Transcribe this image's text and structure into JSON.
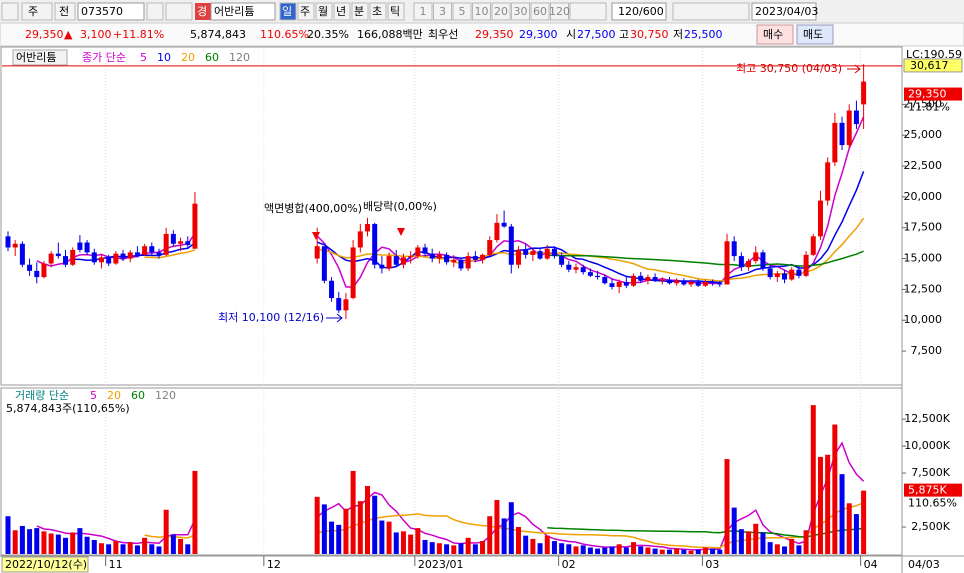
{
  "toolbar": {
    "market": "주",
    "prev": "전",
    "code": "073570",
    "warning": "경",
    "name": "어반리튬",
    "periods": [
      "일",
      "주",
      "월",
      "년",
      "분",
      "초",
      "틱"
    ],
    "intervals": [
      "1",
      "3",
      "5",
      "10",
      "20",
      "30",
      "60",
      "120"
    ],
    "count": "120/600",
    "date": "2023/04/03"
  },
  "quote": {
    "price": "29,350",
    "arrow": "▲",
    "change": "3,100",
    "change_pct": "+11.81%",
    "volume": "5,874,843",
    "volume_pct": "110.65%",
    "turnover": "20.35%",
    "amount": "166,088백만",
    "best_label": "최우선",
    "ask": "29,350",
    "bid": "29,300",
    "open_label": "시",
    "open": "27,500",
    "high_label": "고",
    "high": "30,750",
    "low_label": "저",
    "low": "25,500",
    "buy": "매수",
    "sell": "매도"
  },
  "chart_data": {
    "type": "candlestick",
    "name": "어반리튬",
    "ohlc": [
      [
        16800,
        17200,
        15600,
        15900
      ],
      [
        15900,
        16500,
        15200,
        16200
      ],
      [
        16200,
        16400,
        14300,
        14500
      ],
      [
        14500,
        15000,
        13600,
        14000
      ],
      [
        14000,
        14700,
        13000,
        13500
      ],
      [
        13500,
        14800,
        13400,
        14600
      ],
      [
        14600,
        15600,
        14300,
        15400
      ],
      [
        15400,
        16300,
        15000,
        15200
      ],
      [
        15200,
        15700,
        14300,
        14500
      ],
      [
        14500,
        15900,
        14400,
        15700
      ],
      [
        16300,
        16900,
        15500,
        15700
      ],
      [
        16300,
        16500,
        15300,
        15500
      ],
      [
        15500,
        15800,
        14500,
        14700
      ],
      [
        14700,
        15300,
        14200,
        15100
      ],
      [
        15100,
        15300,
        14400,
        14600
      ],
      [
        14600,
        15600,
        14500,
        15400
      ],
      [
        15400,
        15700,
        14800,
        15000
      ],
      [
        15000,
        15700,
        14700,
        15500
      ],
      [
        15500,
        16000,
        15100,
        15300
      ],
      [
        15300,
        16200,
        15200,
        16000
      ],
      [
        16000,
        16300,
        15300,
        15500
      ],
      [
        15500,
        15800,
        15000,
        15300
      ],
      [
        15300,
        17500,
        15200,
        17000
      ],
      [
        17000,
        17300,
        16000,
        16200
      ],
      [
        16200,
        16700,
        15600,
        16400
      ],
      [
        16400,
        16800,
        15900,
        16100
      ],
      [
        15800,
        20400,
        15800,
        19450
      ],
      null,
      null,
      null,
      null,
      null,
      null,
      null,
      null,
      null,
      null,
      null,
      null,
      null,
      null,
      null,
      null,
      [
        15000,
        17500,
        14600,
        16000
      ],
      [
        16000,
        16000,
        13000,
        13200
      ],
      [
        13200,
        13500,
        11500,
        11800
      ],
      [
        11800,
        12300,
        10600,
        10800
      ],
      [
        10800,
        12200,
        10100,
        11700
      ],
      [
        11800,
        16500,
        11700,
        15900
      ],
      [
        15900,
        17800,
        15500,
        17200
      ],
      [
        17200,
        18300,
        16800,
        17800
      ],
      [
        17800,
        17900,
        14200,
        14500
      ],
      [
        14500,
        15200,
        13800,
        14200
      ],
      [
        14200,
        15500,
        14000,
        15200
      ],
      [
        15200,
        15700,
        14300,
        14500
      ],
      [
        14500,
        15400,
        14200,
        15100
      ],
      [
        15100,
        15600,
        14600,
        15200
      ],
      [
        15200,
        16100,
        15000,
        15900
      ],
      [
        15900,
        16200,
        15200,
        15400
      ],
      [
        15400,
        15800,
        14700,
        15000
      ],
      [
        15000,
        15600,
        14600,
        15300
      ],
      [
        15300,
        15500,
        14500,
        14700
      ],
      [
        14700,
        15300,
        14300,
        14900
      ],
      [
        14900,
        15100,
        14000,
        14200
      ],
      [
        14200,
        15500,
        14000,
        15200
      ],
      [
        15200,
        15600,
        14700,
        14900
      ],
      [
        14900,
        15400,
        14600,
        15300
      ],
      [
        15300,
        16800,
        15200,
        16500
      ],
      [
        16500,
        18600,
        16300,
        17900
      ],
      [
        17900,
        18900,
        17500,
        17600
      ],
      [
        17600,
        17800,
        13800,
        14500
      ],
      [
        14500,
        16000,
        14200,
        15700
      ],
      [
        15700,
        16200,
        15000,
        15300
      ],
      [
        15300,
        15800,
        14800,
        15600
      ],
      [
        15600,
        15900,
        14900,
        15000
      ],
      [
        15000,
        16100,
        14900,
        15800
      ],
      [
        15800,
        16000,
        15000,
        15200
      ],
      [
        15200,
        15500,
        14300,
        14500
      ],
      [
        14500,
        14800,
        13900,
        14100
      ],
      [
        14100,
        14600,
        13800,
        14300
      ],
      [
        14300,
        14500,
        13700,
        13900
      ],
      [
        13900,
        14200,
        13500,
        13600
      ],
      [
        13600,
        14000,
        13300,
        13500
      ],
      [
        13500,
        13700,
        12900,
        13000
      ],
      [
        13000,
        13400,
        12500,
        12700
      ],
      [
        12700,
        13300,
        12200,
        13100
      ],
      [
        13100,
        13500,
        12600,
        12800
      ],
      [
        12800,
        13800,
        12700,
        13600
      ],
      [
        13600,
        13900,
        13000,
        13200
      ],
      [
        13200,
        13700,
        12900,
        13500
      ],
      [
        13500,
        13800,
        13100,
        13200
      ],
      [
        13200,
        13500,
        12900,
        13300
      ],
      [
        13300,
        13500,
        12900,
        13000
      ],
      [
        13000,
        13400,
        12800,
        13200
      ],
      [
        13200,
        13400,
        12800,
        12900
      ],
      [
        12900,
        13300,
        12700,
        13100
      ],
      [
        13100,
        13300,
        12700,
        12800
      ],
      [
        12800,
        13300,
        12700,
        13100
      ],
      [
        13100,
        13300,
        12800,
        13000
      ],
      [
        13000,
        13200,
        12700,
        12900
      ],
      [
        12900,
        17000,
        12900,
        16400
      ],
      [
        16400,
        16800,
        14800,
        15200
      ],
      [
        15200,
        15500,
        14000,
        14300
      ],
      [
        14300,
        15000,
        14000,
        14800
      ],
      [
        14800,
        16000,
        14600,
        15500
      ],
      [
        15500,
        15700,
        14000,
        14200
      ],
      [
        14200,
        14500,
        13300,
        13500
      ],
      [
        13500,
        14000,
        13100,
        13800
      ],
      [
        13800,
        14100,
        13000,
        13300
      ],
      [
        13300,
        14300,
        13200,
        14100
      ],
      [
        14100,
        14400,
        13400,
        13600
      ],
      [
        13600,
        15600,
        13500,
        15300
      ],
      [
        15300,
        17000,
        15200,
        16800
      ],
      [
        16800,
        20500,
        16500,
        19700
      ],
      [
        19700,
        23200,
        19300,
        22800
      ],
      [
        22800,
        26800,
        22500,
        26000
      ],
      [
        26000,
        26500,
        23800,
        24200
      ],
      [
        24200,
        27500,
        24000,
        27000
      ],
      [
        27000,
        27800,
        25500,
        25900
      ],
      [
        27500,
        30750,
        25500,
        29350
      ]
    ],
    "volume": [
      3500,
      2200,
      2600,
      2300,
      2400,
      2100,
      1900,
      1800,
      1500,
      2000,
      2400,
      1600,
      1300,
      1000,
      900,
      1200,
      900,
      1100,
      800,
      1500,
      900,
      700,
      4100,
      1800,
      1400,
      900,
      7700,
      null,
      null,
      null,
      null,
      null,
      null,
      null,
      null,
      null,
      null,
      null,
      null,
      null,
      null,
      null,
      null,
      5300,
      4600,
      3000,
      2700,
      4200,
      7700,
      4900,
      6300,
      5400,
      3100,
      3000,
      2000,
      2100,
      1800,
      2400,
      1300,
      1100,
      1000,
      900,
      800,
      1000,
      1500,
      900,
      1200,
      3500,
      5000,
      3300,
      4800,
      2500,
      1700,
      1400,
      1000,
      1700,
      1200,
      1000,
      900,
      700,
      800,
      600,
      500,
      600,
      700,
      900,
      600,
      1100,
      700,
      600,
      500,
      400,
      400,
      500,
      400,
      300,
      400,
      600,
      500,
      400,
      8800,
      4300,
      2300,
      2100,
      2800,
      2000,
      1100,
      900,
      700,
      1400,
      800,
      2200,
      13800,
      9000,
      9200,
      12000,
      7400,
      4700,
      3700,
      5875
    ],
    "ylim": [
      4750,
      32150
    ],
    "yticks": [
      {
        "value": 7500,
        "label": "7,500"
      },
      {
        "value": 10000,
        "label": "10,000"
      },
      {
        "value": 12500,
        "label": "12,500"
      },
      {
        "value": 15000,
        "label": "15,000"
      },
      {
        "value": 17500,
        "label": "17,500"
      },
      {
        "value": 20000,
        "label": "20,000"
      },
      {
        "value": 22500,
        "label": "22,500"
      },
      {
        "value": 25000,
        "label": "25,000"
      },
      {
        "value": 27500,
        "label": "27,500"
      }
    ],
    "volume_ylim": [
      0,
      15200
    ],
    "volume_yticks": [
      {
        "value": 2500,
        "label": "2,500K"
      },
      {
        "value": 7500,
        "label": "7,500K"
      },
      {
        "value": 10000,
        "label": "10,000K"
      },
      {
        "value": 12500,
        "label": "12,500K"
      }
    ],
    "xticks": [
      {
        "value": 14,
        "label": "11"
      },
      {
        "value": 36,
        "label": "12"
      },
      {
        "value": 57,
        "label": "2023/01"
      },
      {
        "value": 77,
        "label": "02"
      },
      {
        "value": 97,
        "label": "03"
      },
      {
        "value": 119,
        "label": "04"
      }
    ],
    "x_cursor": "2022/10/12(수)",
    "x_end": "04/03",
    "top_label": "LC:190.59",
    "cursor_price": {
      "value": 30617,
      "label": "30,617"
    },
    "last_price": {
      "value": 29350,
      "label": "29,350"
    },
    "last_change": "11.81%",
    "last_volume": {
      "value": 5875,
      "label": "5,875K"
    },
    "last_volume_pct": "110.65%",
    "ma": {
      "label": "종가 단순",
      "periods": [
        5,
        10,
        20,
        60,
        120
      ],
      "colors": [
        "#cc00cc",
        "#0000ee",
        "#f0a000",
        "#008000",
        "#808080"
      ]
    },
    "volume_ma": {
      "label": "거래량 단순",
      "periods": [
        5,
        20,
        60,
        120
      ],
      "colors": [
        "#cc00cc",
        "#f0a000",
        "#008000",
        "#808080"
      ]
    },
    "volume_info": "5,874,843주(110,65%)",
    "up_color": "#ee0000",
    "down_color": "#0000ee",
    "annotations": {
      "high": "최고 30,750 (04/03)",
      "low": "최저 10,100 (12/16)",
      "split": "액면병합(400,00%)",
      "dividend": "배당락(0,00%)"
    }
  }
}
